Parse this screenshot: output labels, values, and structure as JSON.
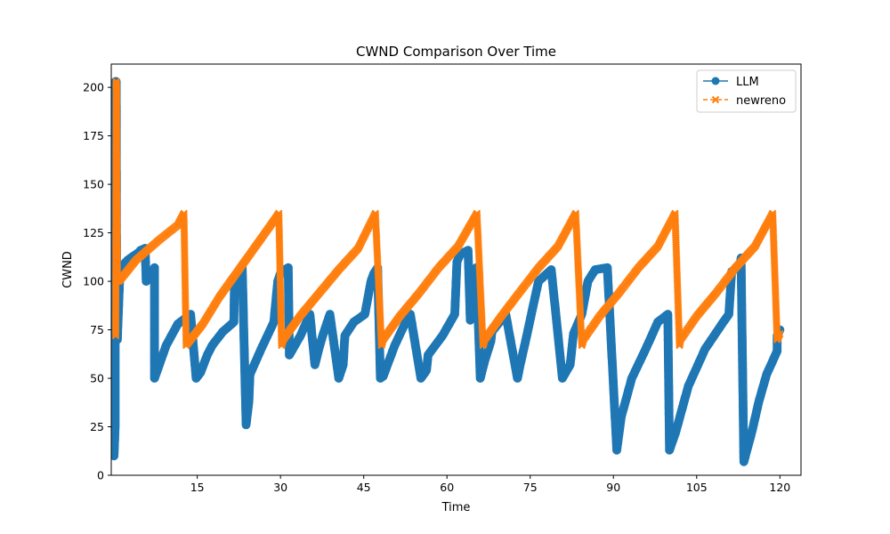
{
  "chart_data": {
    "type": "line",
    "title": "CWND Comparison Over Time",
    "xlabel": "Time",
    "ylabel": "CWND",
    "xlim": [
      -0.5,
      123.8
    ],
    "ylim": [
      0,
      212
    ],
    "xticks": [
      15,
      30,
      45,
      60,
      75,
      90,
      105,
      120
    ],
    "yticks": [
      0,
      25,
      50,
      75,
      100,
      125,
      150,
      175,
      200
    ],
    "grid": false,
    "legend_position": "top-right",
    "series": [
      {
        "name": "LLM",
        "color": "#1f77b4",
        "marker": "circle",
        "linestyle": "solid",
        "x": [
          0.0,
          0.2,
          0.25,
          0.4,
          0.45,
          0.6,
          1.0,
          1.1,
          1.5,
          2.5,
          3.5,
          4.5,
          4.8,
          5.6,
          5.8,
          7.3,
          7.3,
          9.4,
          11.5,
          13.8,
          14.8,
          15.6,
          16.8,
          17.7,
          19.6,
          21.6,
          21.7,
          22.9,
          23.1,
          23.8,
          24.3,
          24.5,
          26.5,
          28.8,
          29.5,
          30.1,
          31.4,
          31.6,
          33.6,
          35.3,
          36.2,
          36.9,
          37.6,
          38.9,
          40.5,
          41.3,
          41.6,
          43.2,
          45.2,
          46.3,
          46.8,
          47.5,
          48.0,
          48.5,
          50.6,
          52.4,
          53.4,
          55.3,
          56.3,
          56.6,
          59.2,
          61.4,
          61.8,
          62.4,
          63.8,
          64.2,
          64.8,
          65.3,
          66.0,
          66.8,
          67.9,
          68.1,
          70.6,
          72.7,
          73.2,
          74.3,
          75.2,
          76.5,
          78.8,
          80.8,
          82.2,
          82.8,
          84.3,
          85.4,
          86.7,
          88.9,
          90.6,
          91.4,
          93.3,
          95.8,
          98.0,
          99.8,
          100.1,
          101.2,
          103.5,
          106.5,
          109.8,
          110.8,
          111.3,
          112.8,
          113.0,
          113.5,
          115.0,
          116.2,
          117.6,
          119.5,
          119.5,
          120.0
        ],
        "y": [
          10,
          25,
          203,
          203,
          100,
          70,
          100,
          105,
          108,
          111,
          113,
          115,
          116,
          117,
          100,
          107,
          50,
          67,
          78,
          83,
          50,
          53,
          62,
          67,
          74,
          79,
          100,
          104,
          108,
          26,
          38,
          52,
          65,
          79,
          100,
          105,
          107,
          62,
          72,
          83,
          57,
          65,
          72,
          83,
          50,
          57,
          72,
          79,
          83,
          100,
          104,
          107,
          50,
          51,
          67,
          78,
          83,
          50,
          54,
          62,
          72,
          83,
          110,
          114,
          116,
          80,
          104,
          107,
          50,
          59,
          69,
          74,
          83,
          50,
          57,
          71,
          83,
          100,
          106,
          50,
          57,
          73,
          83,
          100,
          106,
          107,
          13,
          30,
          50,
          65,
          79,
          83,
          13,
          22,
          46,
          65,
          79,
          83,
          105,
          108,
          112,
          7,
          23,
          38,
          52,
          64,
          72,
          75
        ]
      },
      {
        "name": "newreno",
        "color": "#ff7f0e",
        "marker": "x",
        "linestyle": "dashed",
        "x": [
          0.3,
          0.4,
          0.45,
          0.5,
          0.6,
          0.9,
          4.0,
          8.0,
          11.5,
          12.6,
          13.0,
          16.0,
          19.0,
          22.0,
          25.0,
          28.0,
          29.7,
          30.2,
          30.5,
          33.5,
          37.0,
          40.5,
          44.0,
          47.1,
          48.2,
          48.5,
          51.5,
          55.0,
          58.5,
          62.0,
          65.4,
          66.5,
          66.8,
          69.8,
          73.0,
          76.5,
          80.0,
          83.2,
          84.3,
          84.6,
          87.5,
          91.0,
          94.5,
          98.0,
          101.1,
          101.9,
          102.1,
          105.0,
          108.5,
          112.0,
          115.5,
          118.7,
          119.5,
          120.0
        ],
        "y": [
          72,
          203,
          200,
          155,
          100,
          100,
          111,
          121,
          129,
          135,
          67,
          78,
          92,
          104,
          116,
          128,
          135,
          67,
          70,
          82,
          94,
          106,
          117,
          135,
          67,
          70,
          82,
          94,
          107,
          118,
          135,
          67,
          70,
          82,
          94,
          107,
          118,
          135,
          67,
          70,
          82,
          94,
          107,
          118,
          135,
          67,
          70,
          82,
          94,
          107,
          118,
          135,
          70,
          73
        ]
      }
    ]
  }
}
